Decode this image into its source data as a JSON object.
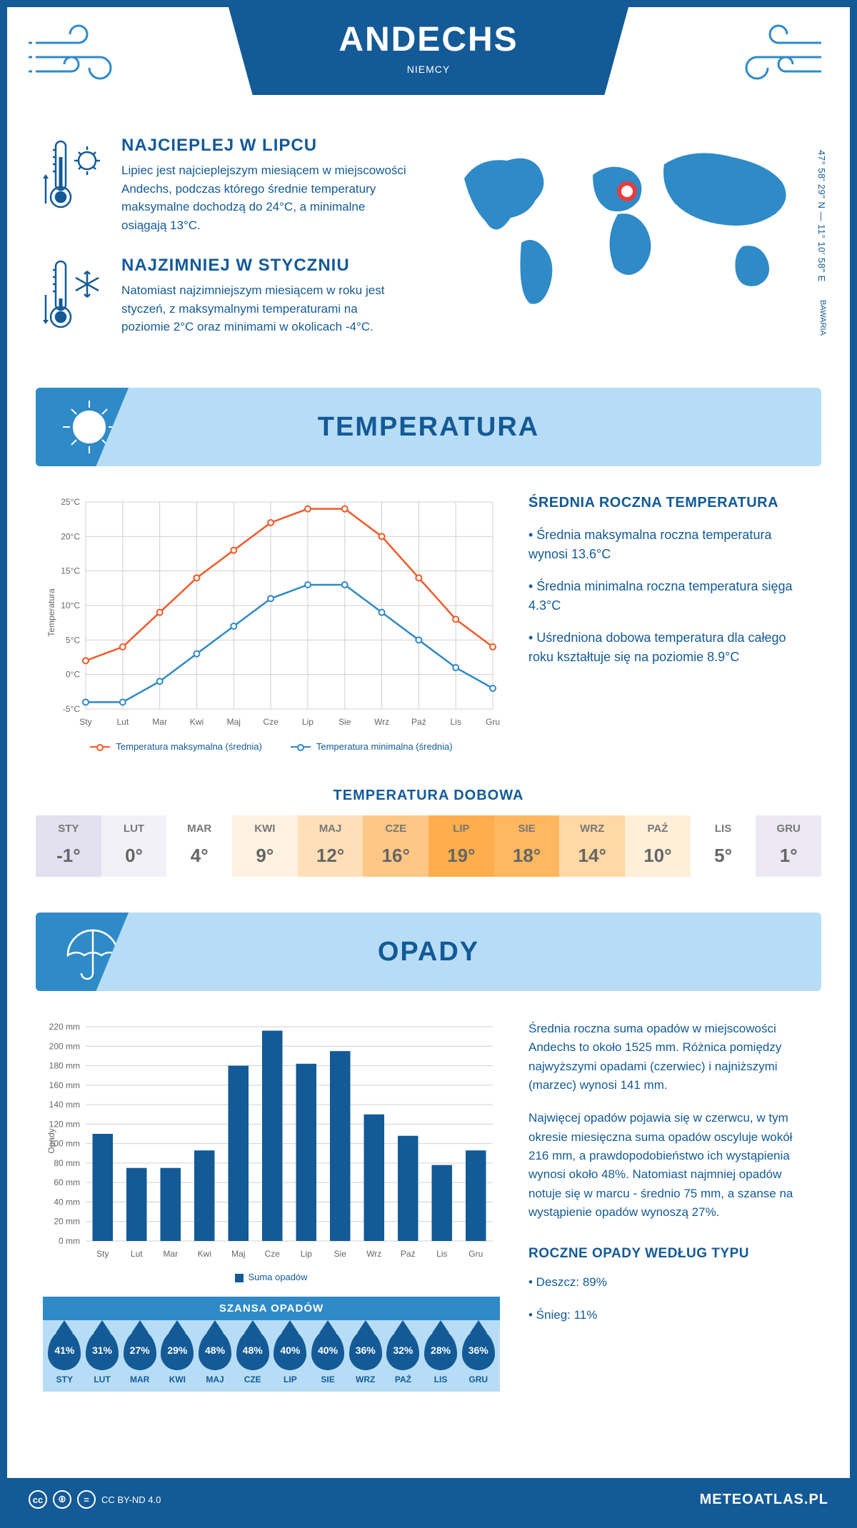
{
  "header": {
    "title": "ANDECHS",
    "country": "NIEMCY",
    "coordinates": "47° 58' 29\" N — 11° 10' 58\" E",
    "region": "BAWARIA"
  },
  "facts": {
    "hot": {
      "heading": "NAJCIEPLEJ W LIPCU",
      "body": "Lipiec jest najcieplejszym miesiącem w miejscowości Andechs, podczas którego średnie temperatury maksymalne dochodzą do 24°C, a minimalne osiągają 13°C."
    },
    "cold": {
      "heading": "NAJZIMNIEJ W STYCZNIU",
      "body": "Natomiast najzimniejszym miesiącem w roku jest styczeń, z maksymalnymi temperaturami na poziomie 2°C oraz minimami w okolicach -4°C."
    }
  },
  "months": [
    "Sty",
    "Lut",
    "Mar",
    "Kwi",
    "Maj",
    "Cze",
    "Lip",
    "Sie",
    "Wrz",
    "Paź",
    "Lis",
    "Gru"
  ],
  "months_upper": [
    "STY",
    "LUT",
    "MAR",
    "KWI",
    "MAJ",
    "CZE",
    "LIP",
    "SIE",
    "WRZ",
    "PAŹ",
    "LIS",
    "GRU"
  ],
  "temperature": {
    "section_title": "TEMPERATURA",
    "y_label": "Temperatura",
    "y_ticks": [
      -5,
      0,
      5,
      10,
      15,
      20,
      25
    ],
    "y_tick_labels": [
      "-5°C",
      "0°C",
      "5°C",
      "10°C",
      "15°C",
      "20°C",
      "25°C"
    ],
    "series": {
      "max": {
        "label": "Temperatura maksymalna (średnia)",
        "color": "#f05a28",
        "values": [
          2,
          4,
          9,
          14,
          18,
          22,
          24,
          24,
          20,
          14,
          8,
          4
        ]
      },
      "min": {
        "label": "Temperatura minimalna (średnia)",
        "color": "#2f8ac8",
        "values": [
          -4,
          -4,
          -1,
          3,
          7,
          11,
          13,
          13,
          9,
          5,
          1,
          -2
        ]
      }
    },
    "summary": {
      "heading": "ŚREDNIA ROCZNA TEMPERATURA",
      "bullets": [
        "• Średnia maksymalna roczna temperatura wynosi 13.6°C",
        "• Średnia minimalna roczna temperatura sięga 4.3°C",
        "• Uśredniona dobowa temperatura dla całego roku kształtuje się na poziomie 8.9°C"
      ]
    },
    "daily": {
      "heading": "TEMPERATURA DOBOWA",
      "values": [
        "-1°",
        "0°",
        "4°",
        "9°",
        "12°",
        "16°",
        "19°",
        "18°",
        "14°",
        "10°",
        "5°",
        "1°"
      ],
      "colors": [
        "#e3e0f0",
        "#f3f1f8",
        "#ffffff",
        "#fff1e1",
        "#ffdfb8",
        "#ffc786",
        "#ffad4d",
        "#ffb760",
        "#ffd8a3",
        "#ffeed8",
        "#ffffff",
        "#ece9f4"
      ]
    }
  },
  "precip": {
    "section_title": "OPADY",
    "y_label": "Opady",
    "y_ticks": [
      0,
      20,
      40,
      60,
      80,
      100,
      120,
      140,
      160,
      180,
      200,
      220
    ],
    "values": [
      110,
      75,
      75,
      93,
      180,
      216,
      182,
      195,
      130,
      108,
      78,
      93
    ],
    "legend": "Suma opadów",
    "bar_color": "#135a97",
    "para1": "Średnia roczna suma opadów w miejscowości Andechs to około 1525 mm. Różnica pomiędzy najwyższymi opadami (czerwiec) i najniższymi (marzec) wynosi 141 mm.",
    "para2": "Najwięcej opadów pojawia się w czerwcu, w tym okresie miesięczna suma opadów oscyluje wokół 216 mm, a prawdopodobieństwo ich wystąpienia wynosi około 48%. Natomiast najmniej opadów notuje się w marcu - średnio 75 mm, a szanse na wystąpienie opadów wynoszą 27%.",
    "chance": {
      "heading": "SZANSA OPADÓW",
      "values": [
        "41%",
        "31%",
        "27%",
        "29%",
        "48%",
        "48%",
        "40%",
        "40%",
        "36%",
        "32%",
        "28%",
        "36%"
      ]
    },
    "by_type": {
      "heading": "ROCZNE OPADY WEDŁUG TYPU",
      "bullets": [
        "• Deszcz: 89%",
        "• Śnieg: 11%"
      ]
    }
  },
  "footer": {
    "license": "CC BY-ND 4.0",
    "brand": "METEOATLAS.PL"
  },
  "colors": {
    "primary": "#135a97",
    "light": "#b7ddf6",
    "accent": "#2f8ac8",
    "orange": "#f05a28"
  }
}
